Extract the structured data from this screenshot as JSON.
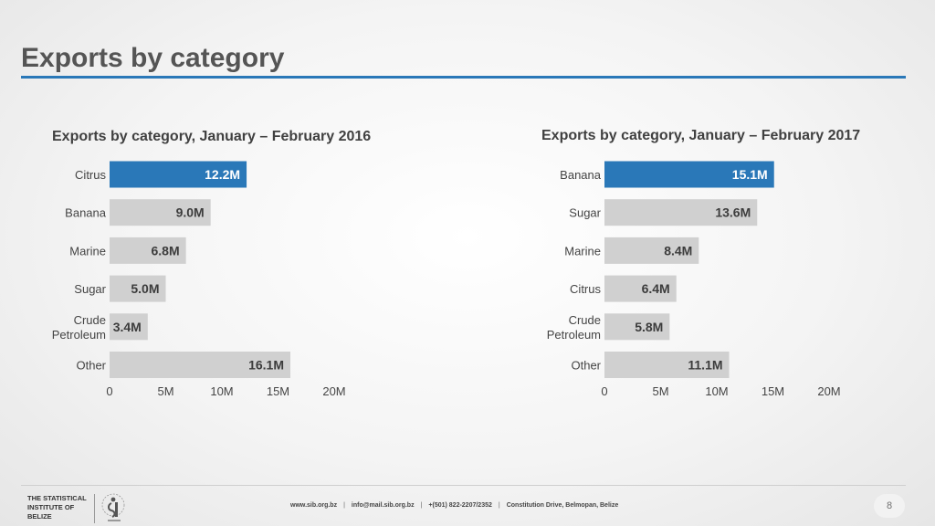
{
  "slide": {
    "title": "Exports by category",
    "page_number": "8"
  },
  "footer": {
    "org_line1": "THE STATISTICAL",
    "org_line2": "INSTITUTE OF",
    "org_line3": "BELIZE",
    "website": "www.sib.org.bz",
    "email": "info@mail.sib.org.bz",
    "phone": "+(501) 822-2207/2352",
    "address": "Constitution Drive, Belmopan, Belize",
    "separator": "|"
  },
  "colors": {
    "highlight_bar": "#2a78b8",
    "bar": "#d0d0d0",
    "highlight_label": "#ffffff",
    "label": "#3c3c3c",
    "rule": "#2a78b8"
  },
  "chart_data": [
    {
      "type": "bar",
      "orientation": "horizontal",
      "title": "Exports by category, January – February 2016",
      "categories": [
        "Citrus",
        "Banana",
        "Marine",
        "Sugar",
        "Crude Petroleum",
        "Other"
      ],
      "values": [
        12.2,
        9.0,
        6.8,
        5.0,
        3.4,
        16.1
      ],
      "data_labels": [
        "12.2M",
        "9.0M",
        "6.8M",
        "5.0M",
        "3.4M",
        "16.1M"
      ],
      "highlight_index": 0,
      "xlim": [
        0,
        20
      ],
      "xticks": [
        0,
        5,
        10,
        15,
        20
      ],
      "xtick_labels": [
        "0",
        "5M",
        "10M",
        "15M",
        "20M"
      ],
      "grid": false
    },
    {
      "type": "bar",
      "orientation": "horizontal",
      "title": "Exports by category, January – February 2017",
      "categories": [
        "Banana",
        "Sugar",
        "Marine",
        "Citrus",
        "Crude Petroleum",
        "Other"
      ],
      "values": [
        15.1,
        13.6,
        8.4,
        6.4,
        5.8,
        11.1
      ],
      "data_labels": [
        "15.1M",
        "13.6M",
        "8.4M",
        "6.4M",
        "5.8M",
        "11.1M"
      ],
      "highlight_index": 0,
      "xlim": [
        0,
        20
      ],
      "xticks": [
        0,
        5,
        10,
        15,
        20
      ],
      "xtick_labels": [
        "0",
        "5M",
        "10M",
        "15M",
        "20M"
      ],
      "grid": false
    }
  ]
}
